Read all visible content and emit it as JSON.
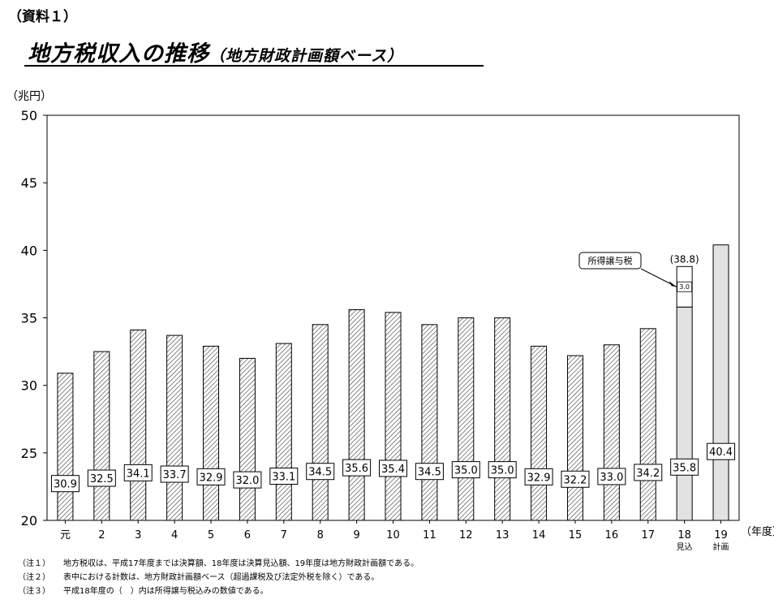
{
  "document_label": "（資料１）",
  "title_main": "地方税収入の推移",
  "title_sub": "（地方財政計画額ベース）",
  "unit_label": "（兆円）",
  "notes": [
    {
      "label": "（注１）",
      "text": "地方税収は、平成17年度までは決算額、18年度は決算見込額、19年度は地方財政計画額である。"
    },
    {
      "label": "（注２）",
      "text": "表中における計数は、地方財政計画額ベース（超過課税及び法定外税を除く）である。"
    },
    {
      "label": "（注３）",
      "text": "平成18年度の（　）内は所得譲与税込みの数値である。"
    }
  ],
  "chart_data": {
    "type": "bar",
    "title": "地方税収入の推移",
    "subtitle": "（地方財政計画額ベース）",
    "ylabel": "（兆円）",
    "xlabel": "（年度）",
    "ylim": [
      20,
      50
    ],
    "yticks": [
      20,
      25,
      30,
      35,
      40,
      45,
      50
    ],
    "grid": false,
    "categories": [
      "元",
      "2",
      "3",
      "4",
      "5",
      "6",
      "7",
      "8",
      "9",
      "10",
      "11",
      "12",
      "13",
      "14",
      "15",
      "16",
      "17",
      "18",
      "19"
    ],
    "category_sublabels": [
      "",
      "",
      "",
      "",
      "",
      "",
      "",
      "",
      "",
      "",
      "",
      "",
      "",
      "",
      "",
      "",
      "",
      "見込",
      "計画"
    ],
    "values": [
      30.9,
      32.5,
      34.1,
      33.7,
      32.9,
      32.0,
      33.1,
      34.5,
      35.6,
      35.4,
      34.5,
      35.0,
      35.0,
      32.9,
      32.2,
      33.0,
      34.2,
      35.8,
      40.4
    ],
    "value_labels": [
      "30.9",
      "32.5",
      "34.1",
      "33.7",
      "32.9",
      "32.0",
      "33.1",
      "34.5",
      "35.6",
      "35.4",
      "34.5",
      "35.0",
      "35.0",
      "32.9",
      "32.2",
      "33.0",
      "34.2",
      "35.8",
      "40.4"
    ],
    "bar_styles": [
      "hatched",
      "hatched",
      "hatched",
      "hatched",
      "hatched",
      "hatched",
      "hatched",
      "hatched",
      "hatched",
      "hatched",
      "hatched",
      "hatched",
      "hatched",
      "hatched",
      "hatched",
      "hatched",
      "hatched",
      "gray",
      "gray"
    ],
    "stacked_extra": {
      "category": "18",
      "name": "所得譲与税",
      "value": 3.0,
      "value_label": "3.0",
      "total": 38.8,
      "total_label": "(38.8)"
    },
    "colors": {
      "hatch_line": "#555555",
      "gray_fill": "#e2e2e2",
      "extra_fill": "#ffffff",
      "axis": "#000000"
    }
  }
}
